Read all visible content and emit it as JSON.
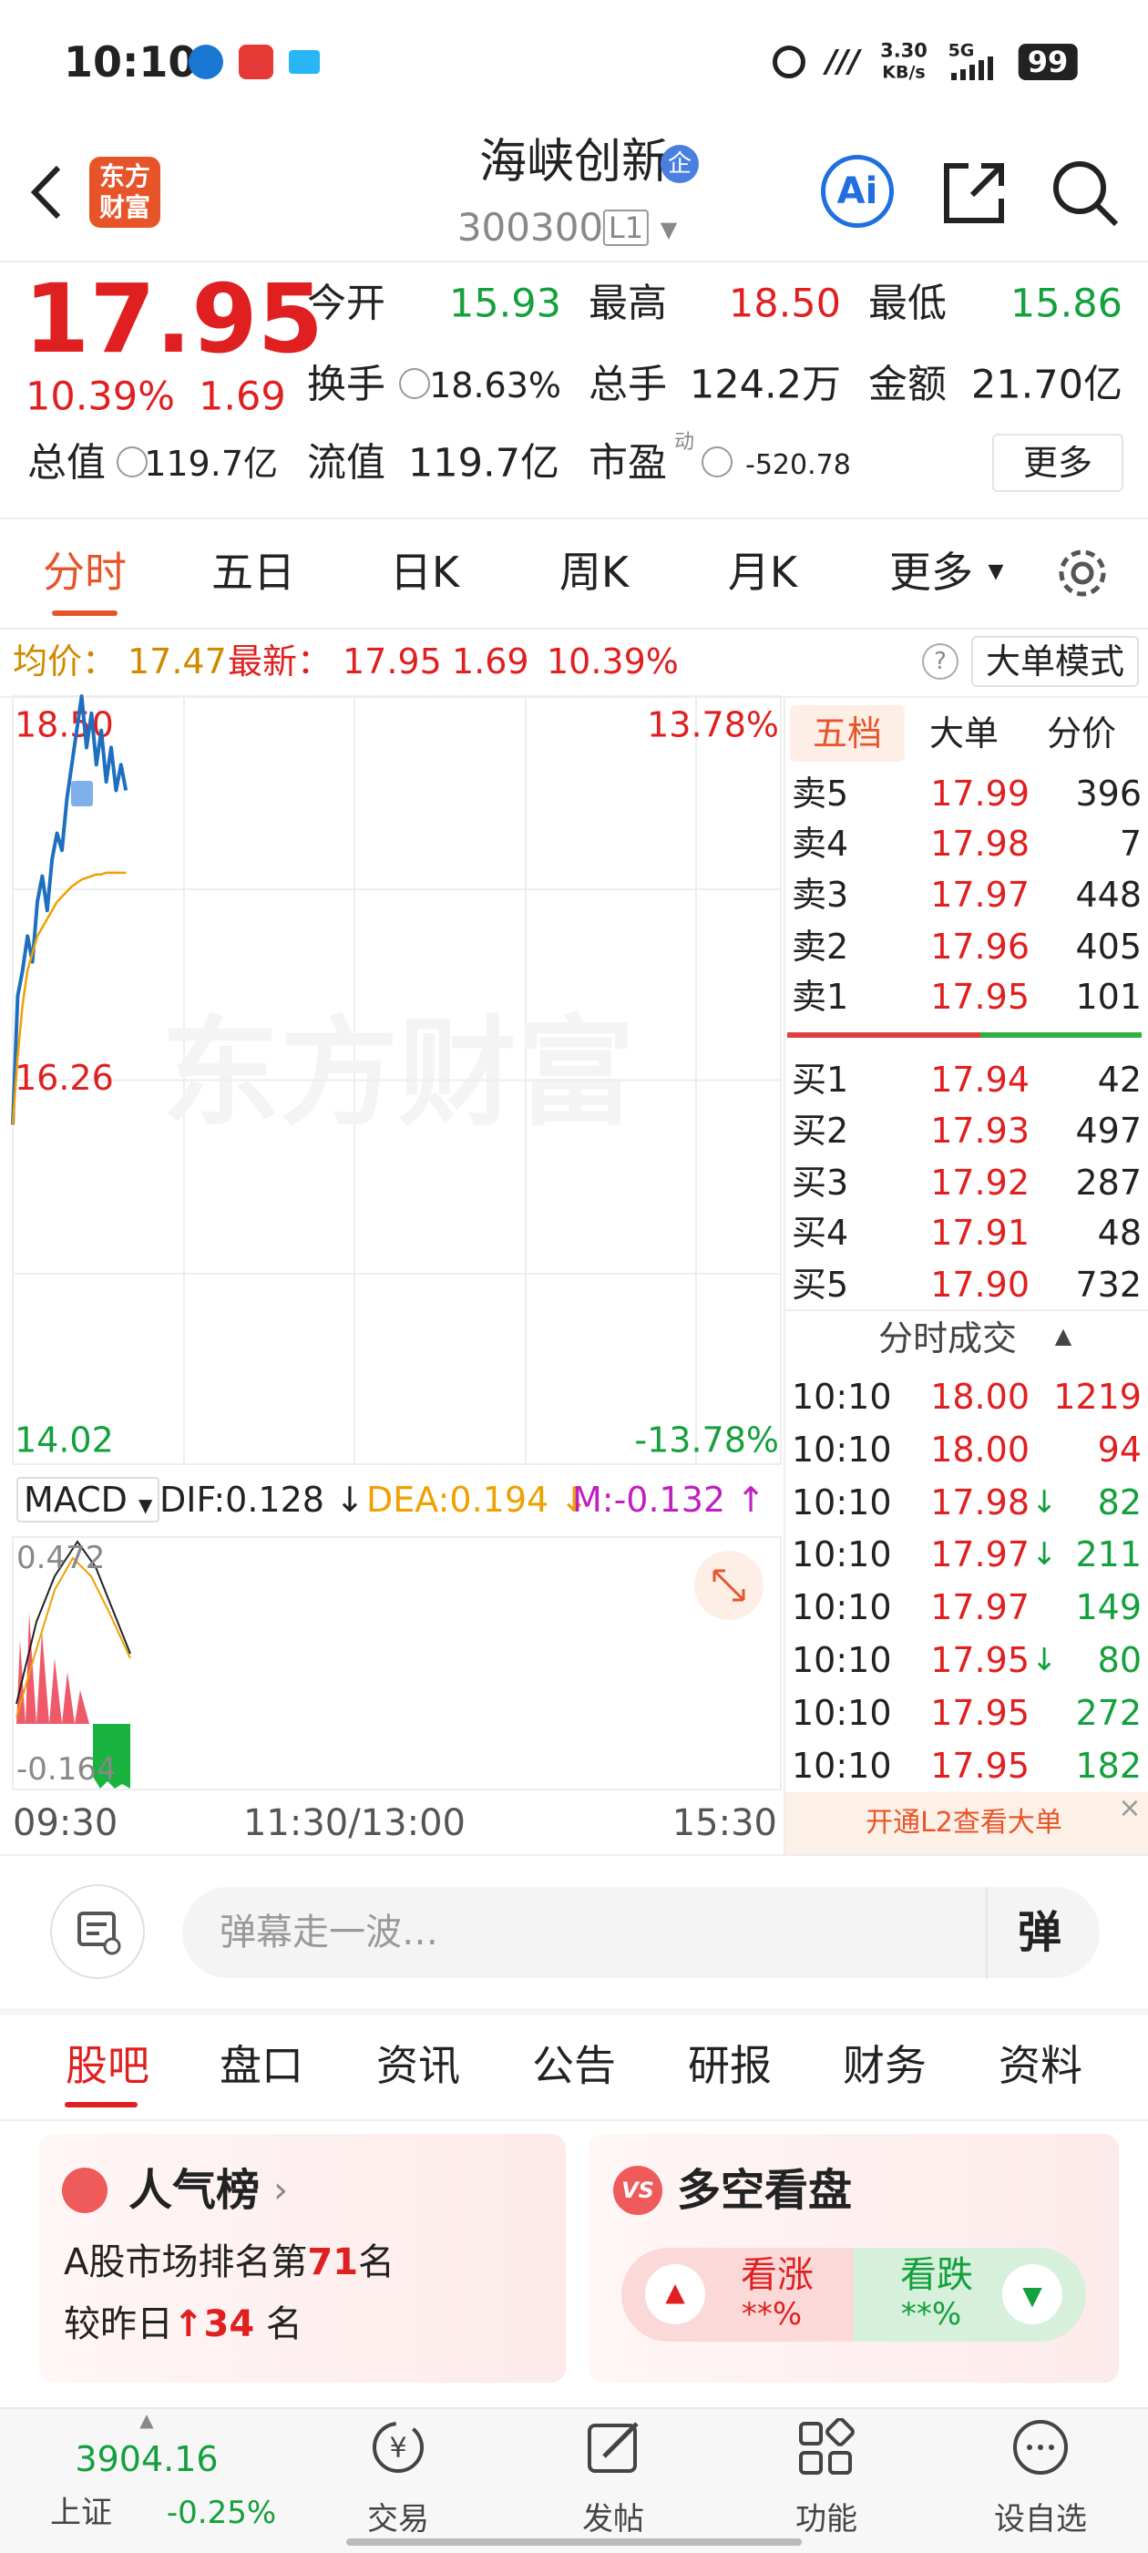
{
  "status_bar": {
    "time": "10:10",
    "net_speed": "3.30",
    "net_unit": "KB/s",
    "network": "5G",
    "battery": "99"
  },
  "header": {
    "logo": "东方财富",
    "title": "海峡创新",
    "badge": "企",
    "code": "300300",
    "level": "L1",
    "ai": "Ai"
  },
  "quote": {
    "price": "17.95",
    "change_pct": "10.39%",
    "change": "1.69",
    "open": {
      "label": "今开",
      "value": "15.93"
    },
    "high": {
      "label": "最高",
      "value": "18.50"
    },
    "low": {
      "label": "最低",
      "value": "15.86"
    },
    "turnover": {
      "label": "换手",
      "value": "18.63%"
    },
    "volume": {
      "label": "总手",
      "value": "124.2万"
    },
    "amount": {
      "label": "金额",
      "value": "21.70亿"
    },
    "market_cap": {
      "label": "总值",
      "value": "119.7亿"
    },
    "float_cap": {
      "label": "流值",
      "value": "119.7亿"
    },
    "pe": {
      "label": "市盈",
      "tag": "动",
      "value": "-520.78"
    },
    "more": "更多"
  },
  "chart_tabs": [
    "分时",
    "五日",
    "日K",
    "周K",
    "月K",
    "更多"
  ],
  "info_bar": {
    "avg_label": "均价：",
    "avg": "17.47",
    "latest_label": "最新：",
    "latest": "17.95",
    "change": "1.69",
    "change_pct": "10.39%",
    "mode": "大单模式"
  },
  "chart_data": {
    "type": "line",
    "watermark": "东方财富",
    "ylim": [
      14.02,
      18.5
    ],
    "yticks": [
      14.02,
      16.26,
      {
        "value": 18.5,
        "label": "18.50"
      }
    ],
    "y2lim": [
      -13.78,
      13.78
    ],
    "y2ticks": [
      {
        "value": -13.78,
        "label": "-13.78%"
      },
      {
        "value": 13.78,
        "label": "13.78%"
      }
    ],
    "x_labels": [
      "09:30",
      "11:30/13:00",
      "15:30"
    ],
    "series": [
      {
        "name": "最新",
        "color": "#1f6fc0",
        "values": [
          16.0,
          16.75,
          16.9,
          17.1,
          16.95,
          17.3,
          17.45,
          17.25,
          17.55,
          17.7,
          17.6,
          17.9,
          18.1,
          18.3,
          18.5,
          18.2,
          18.4,
          18.1,
          18.3,
          18.0,
          18.2,
          17.95,
          18.1,
          17.95
        ]
      },
      {
        "name": "均价",
        "color": "#f0a000",
        "values": [
          16.0,
          16.4,
          16.7,
          16.9,
          17.0,
          17.1,
          17.15,
          17.2,
          17.25,
          17.3,
          17.33,
          17.36,
          17.39,
          17.41,
          17.43,
          17.44,
          17.45,
          17.46,
          17.46,
          17.47,
          17.47,
          17.47,
          17.47,
          17.47
        ]
      }
    ]
  },
  "macd": {
    "label": "MACD",
    "dif": "DIF:0.128 ↓",
    "dea": "DEA:0.194 ↓",
    "m": "M:-0.132 ↑",
    "top": "0.472",
    "bottom": "-0.164"
  },
  "order_book": {
    "tabs": [
      "五档",
      "大单",
      "分价"
    ],
    "asks": [
      {
        "label": "卖5",
        "price": "17.99",
        "volume": "396"
      },
      {
        "label": "卖4",
        "price": "17.98",
        "volume": "7"
      },
      {
        "label": "卖3",
        "price": "17.97",
        "volume": "448"
      },
      {
        "label": "卖2",
        "price": "17.96",
        "volume": "405"
      },
      {
        "label": "卖1",
        "price": "17.95",
        "volume": "101"
      }
    ],
    "bids": [
      {
        "label": "买1",
        "price": "17.94",
        "volume": "42"
      },
      {
        "label": "买2",
        "price": "17.93",
        "volume": "497"
      },
      {
        "label": "买3",
        "price": "17.92",
        "volume": "287"
      },
      {
        "label": "买4",
        "price": "17.91",
        "volume": "48"
      },
      {
        "label": "买5",
        "price": "17.90",
        "volume": "732"
      }
    ]
  },
  "trades": {
    "title": "分时成交",
    "rows": [
      {
        "time": "10:10",
        "price": "18.00",
        "volume": "1219"
      },
      {
        "time": "10:10",
        "price": "18.00",
        "volume": "94"
      },
      {
        "time": "10:10",
        "price": "17.98",
        "arrow": "↓",
        "volume": "82"
      },
      {
        "time": "10:10",
        "price": "17.97",
        "arrow": "↓",
        "volume": "211"
      },
      {
        "time": "10:10",
        "price": "17.97",
        "volume": "149"
      },
      {
        "time": "10:10",
        "price": "17.95",
        "arrow": "↓",
        "volume": "80"
      },
      {
        "time": "10:10",
        "price": "17.95",
        "volume": "272"
      },
      {
        "time": "10:10",
        "price": "17.95",
        "volume": "182"
      }
    ]
  },
  "l2_banner": "开通L2查看大单",
  "comment": {
    "placeholder": "弹幕走一波…",
    "button": "弹"
  },
  "section_tabs": [
    "股吧",
    "盘口",
    "资讯",
    "公告",
    "研报",
    "财务",
    "资料"
  ],
  "popularity": {
    "title": "人气榜",
    "rank_prefix": "A股市场排名第",
    "rank": "71",
    "rank_suffix": "名",
    "delta_prefix": "较昨日",
    "delta_arrow": "↑",
    "delta": "34",
    "delta_suffix": "名"
  },
  "sentiment": {
    "icon": "VS",
    "title": "多空看盘",
    "bull": "看涨",
    "bull_pct": "**%",
    "bear": "看跌",
    "bear_pct": "**%"
  },
  "bottom_nav": {
    "index_value": "3904.16",
    "index_name": "上证",
    "index_change": "-0.25%",
    "items": [
      "交易",
      "发帖",
      "功能",
      "设自选"
    ]
  }
}
